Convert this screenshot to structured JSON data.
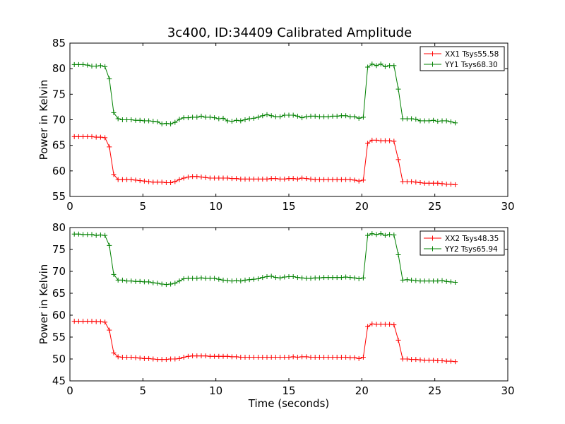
{
  "chart_data": [
    {
      "type": "line",
      "title": "3c400, ID:34409 Calibrated Amplitude",
      "xlabel": "",
      "ylabel": "Power in Kelvin",
      "xlim": [
        0,
        30
      ],
      "ylim": [
        55,
        85
      ],
      "xticks": [
        0,
        5,
        10,
        15,
        20,
        25,
        30
      ],
      "yticks": [
        55,
        60,
        65,
        70,
        75,
        80,
        85
      ],
      "grid": false,
      "legend": "top-right",
      "x": [
        0.3,
        0.6,
        0.9,
        1.2,
        1.5,
        1.8,
        2.1,
        2.4,
        2.7,
        3.0,
        3.3,
        3.6,
        3.9,
        4.2,
        4.5,
        4.8,
        5.1,
        5.4,
        5.7,
        6.0,
        6.3,
        6.6,
        6.9,
        7.2,
        7.5,
        7.8,
        8.1,
        8.4,
        8.7,
        9.0,
        9.3,
        9.6,
        9.9,
        10.2,
        10.5,
        10.8,
        11.1,
        11.4,
        11.7,
        12.0,
        12.3,
        12.6,
        12.9,
        13.2,
        13.5,
        13.8,
        14.1,
        14.4,
        14.7,
        15.0,
        15.3,
        15.6,
        15.9,
        16.2,
        16.5,
        16.8,
        17.1,
        17.4,
        17.7,
        18.0,
        18.3,
        18.6,
        18.9,
        19.2,
        19.5,
        19.8,
        20.1,
        20.4,
        20.7,
        21.0,
        21.3,
        21.6,
        21.9,
        22.2,
        22.5,
        22.8,
        23.1,
        23.4,
        23.7,
        24.0,
        24.3,
        24.6,
        24.9,
        25.2,
        25.5,
        25.8,
        26.1,
        26.4
      ],
      "series": [
        {
          "name": "XX1 Tsys55.58",
          "color": "#ff0000",
          "values": [
            66.7,
            66.7,
            66.7,
            66.7,
            66.7,
            66.6,
            66.6,
            66.5,
            64.7,
            59.3,
            58.3,
            58.3,
            58.3,
            58.3,
            58.2,
            58.1,
            58.0,
            57.9,
            57.8,
            57.8,
            57.8,
            57.7,
            57.7,
            57.9,
            58.3,
            58.6,
            58.8,
            58.9,
            58.9,
            58.8,
            58.7,
            58.6,
            58.6,
            58.6,
            58.6,
            58.6,
            58.5,
            58.5,
            58.4,
            58.4,
            58.4,
            58.4,
            58.4,
            58.4,
            58.4,
            58.5,
            58.5,
            58.4,
            58.4,
            58.5,
            58.5,
            58.4,
            58.6,
            58.5,
            58.4,
            58.3,
            58.3,
            58.3,
            58.3,
            58.3,
            58.3,
            58.3,
            58.3,
            58.3,
            58.2,
            58.0,
            58.2,
            65.4,
            66.0,
            66.0,
            65.9,
            65.9,
            65.9,
            65.8,
            62.2,
            57.9,
            57.9,
            57.9,
            57.8,
            57.7,
            57.6,
            57.6,
            57.6,
            57.6,
            57.5,
            57.4,
            57.4,
            57.3
          ]
        },
        {
          "name": "YY1 Tsys68.30",
          "color": "#008000",
          "values": [
            80.8,
            80.8,
            80.8,
            80.7,
            80.5,
            80.5,
            80.6,
            80.4,
            78.0,
            71.4,
            70.2,
            70.0,
            70.0,
            70.0,
            69.9,
            69.9,
            69.8,
            69.8,
            69.7,
            69.6,
            69.2,
            69.3,
            69.2,
            69.5,
            70.1,
            70.4,
            70.4,
            70.5,
            70.5,
            70.7,
            70.5,
            70.5,
            70.4,
            70.2,
            70.3,
            69.8,
            69.7,
            69.9,
            69.8,
            70.0,
            70.2,
            70.3,
            70.5,
            70.8,
            71.0,
            70.8,
            70.6,
            70.6,
            70.9,
            70.9,
            70.9,
            70.7,
            70.4,
            70.6,
            70.7,
            70.7,
            70.6,
            70.6,
            70.6,
            70.7,
            70.7,
            70.8,
            70.8,
            70.6,
            70.6,
            70.3,
            70.5,
            80.3,
            80.9,
            80.6,
            80.9,
            80.4,
            80.6,
            80.6,
            76.0,
            70.2,
            70.2,
            70.2,
            70.1,
            69.8,
            69.8,
            69.8,
            69.9,
            69.7,
            69.8,
            69.8,
            69.6,
            69.4
          ]
        }
      ]
    },
    {
      "type": "line",
      "title": "",
      "xlabel": "Time (seconds)",
      "ylabel": "Power in Kelvin",
      "xlim": [
        0,
        30
      ],
      "ylim": [
        45,
        80
      ],
      "xticks": [
        0,
        5,
        10,
        15,
        20,
        25,
        30
      ],
      "yticks": [
        45,
        50,
        55,
        60,
        65,
        70,
        75,
        80
      ],
      "grid": false,
      "legend": "top-right",
      "x": [
        0.3,
        0.6,
        0.9,
        1.2,
        1.5,
        1.8,
        2.1,
        2.4,
        2.7,
        3.0,
        3.3,
        3.6,
        3.9,
        4.2,
        4.5,
        4.8,
        5.1,
        5.4,
        5.7,
        6.0,
        6.3,
        6.6,
        6.9,
        7.2,
        7.5,
        7.8,
        8.1,
        8.4,
        8.7,
        9.0,
        9.3,
        9.6,
        9.9,
        10.2,
        10.5,
        10.8,
        11.1,
        11.4,
        11.7,
        12.0,
        12.3,
        12.6,
        12.9,
        13.2,
        13.5,
        13.8,
        14.1,
        14.4,
        14.7,
        15.0,
        15.3,
        15.6,
        15.9,
        16.2,
        16.5,
        16.8,
        17.1,
        17.4,
        17.7,
        18.0,
        18.3,
        18.6,
        18.9,
        19.2,
        19.5,
        19.8,
        20.1,
        20.4,
        20.7,
        21.0,
        21.3,
        21.6,
        21.9,
        22.2,
        22.5,
        22.8,
        23.1,
        23.4,
        23.7,
        24.0,
        24.3,
        24.6,
        24.9,
        25.2,
        25.5,
        25.8,
        26.1,
        26.4
      ],
      "series": [
        {
          "name": "XX2 Tsys48.35",
          "color": "#ff0000",
          "values": [
            58.6,
            58.6,
            58.6,
            58.6,
            58.6,
            58.5,
            58.5,
            58.4,
            56.6,
            51.4,
            50.5,
            50.4,
            50.4,
            50.4,
            50.3,
            50.2,
            50.1,
            50.1,
            50.0,
            49.9,
            49.9,
            49.9,
            50.0,
            50.0,
            50.1,
            50.4,
            50.6,
            50.7,
            50.7,
            50.7,
            50.7,
            50.6,
            50.6,
            50.6,
            50.6,
            50.6,
            50.5,
            50.5,
            50.4,
            50.4,
            50.4,
            50.4,
            50.4,
            50.4,
            50.4,
            50.4,
            50.4,
            50.4,
            50.4,
            50.4,
            50.5,
            50.4,
            50.5,
            50.5,
            50.4,
            50.4,
            50.4,
            50.4,
            50.4,
            50.4,
            50.4,
            50.4,
            50.4,
            50.3,
            50.3,
            50.1,
            50.4,
            57.4,
            58.0,
            57.9,
            57.9,
            57.9,
            57.9,
            57.8,
            54.3,
            50.0,
            50.0,
            49.9,
            49.9,
            49.8,
            49.7,
            49.7,
            49.7,
            49.6,
            49.6,
            49.5,
            49.5,
            49.4
          ]
        },
        {
          "name": "YY2 Tsys65.94",
          "color": "#008000",
          "values": [
            78.5,
            78.5,
            78.4,
            78.4,
            78.4,
            78.2,
            78.3,
            78.2,
            75.9,
            69.3,
            68.0,
            68.0,
            67.8,
            67.8,
            67.7,
            67.7,
            67.6,
            67.6,
            67.4,
            67.3,
            67.1,
            67.0,
            67.1,
            67.3,
            67.8,
            68.3,
            68.4,
            68.4,
            68.4,
            68.5,
            68.4,
            68.4,
            68.4,
            68.2,
            68.0,
            67.9,
            67.8,
            67.9,
            67.8,
            68.0,
            68.1,
            68.2,
            68.3,
            68.6,
            68.8,
            68.9,
            68.6,
            68.5,
            68.7,
            68.8,
            68.8,
            68.6,
            68.5,
            68.4,
            68.4,
            68.5,
            68.5,
            68.6,
            68.6,
            68.6,
            68.6,
            68.6,
            68.7,
            68.6,
            68.5,
            68.3,
            68.5,
            78.2,
            78.6,
            78.4,
            78.6,
            78.2,
            78.4,
            78.3,
            73.8,
            68.0,
            68.1,
            68.0,
            67.9,
            67.8,
            67.8,
            67.8,
            67.8,
            67.8,
            67.9,
            67.7,
            67.6,
            67.5
          ]
        }
      ]
    }
  ]
}
